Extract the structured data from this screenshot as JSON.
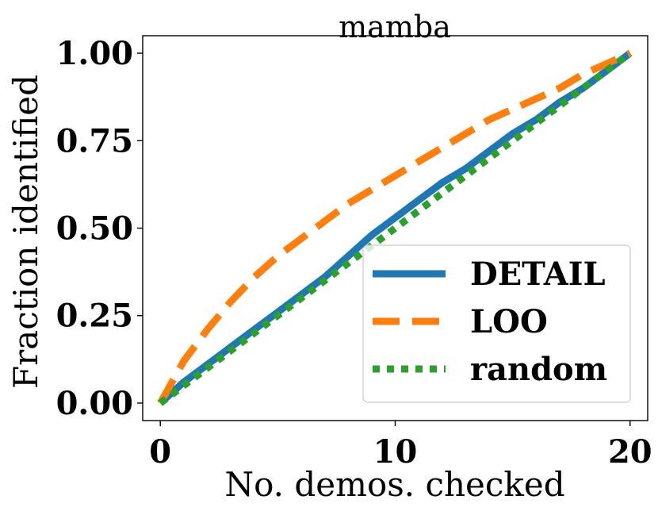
{
  "chart_data": {
    "type": "line",
    "title": "mamba",
    "xlabel": "No. demos. checked",
    "ylabel": "Fraction identified",
    "xlim": [
      -0.75,
      20.75
    ],
    "ylim": [
      -0.05,
      1.05
    ],
    "xticks": [
      0,
      10,
      20
    ],
    "xtick_labels": [
      "0",
      "10",
      "20"
    ],
    "yticks": [
      0.0,
      0.25,
      0.5,
      0.75,
      1.0
    ],
    "ytick_labels": [
      "0.00",
      "0.25",
      "0.50",
      "0.75",
      "1.00"
    ],
    "grid": false,
    "legend": "lower-right",
    "series": [
      {
        "name": "DETAIL",
        "color": "#1f77b4",
        "style": "solid",
        "x": [
          0,
          1,
          2,
          3,
          4,
          5,
          6,
          7,
          8,
          9,
          10,
          11,
          12,
          13,
          14,
          15,
          16,
          17,
          18,
          19,
          20
        ],
        "y": [
          0.0,
          0.06,
          0.11,
          0.16,
          0.21,
          0.26,
          0.31,
          0.36,
          0.42,
          0.48,
          0.53,
          0.58,
          0.63,
          0.67,
          0.72,
          0.77,
          0.81,
          0.86,
          0.9,
          0.95,
          1.0
        ]
      },
      {
        "name": "LOO",
        "color": "#ff7f0e",
        "style": "dashed",
        "x": [
          0,
          1,
          2,
          3,
          4,
          5,
          6,
          7,
          8,
          9,
          10,
          11,
          12,
          13,
          14,
          15,
          16,
          17,
          18,
          19,
          20
        ],
        "y": [
          0.0,
          0.12,
          0.21,
          0.29,
          0.36,
          0.42,
          0.47,
          0.52,
          0.57,
          0.61,
          0.65,
          0.69,
          0.73,
          0.77,
          0.81,
          0.84,
          0.87,
          0.9,
          0.94,
          0.97,
          1.0
        ]
      },
      {
        "name": "random",
        "color": "#2ca02c",
        "style": "dotted",
        "x": [
          0,
          1,
          2,
          3,
          4,
          5,
          6,
          7,
          8,
          9,
          10,
          11,
          12,
          13,
          14,
          15,
          16,
          17,
          18,
          19,
          20
        ],
        "y": [
          0.0,
          0.05,
          0.1,
          0.15,
          0.2,
          0.25,
          0.3,
          0.35,
          0.4,
          0.45,
          0.5,
          0.55,
          0.6,
          0.65,
          0.7,
          0.75,
          0.8,
          0.85,
          0.9,
          0.95,
          1.0
        ]
      }
    ]
  }
}
